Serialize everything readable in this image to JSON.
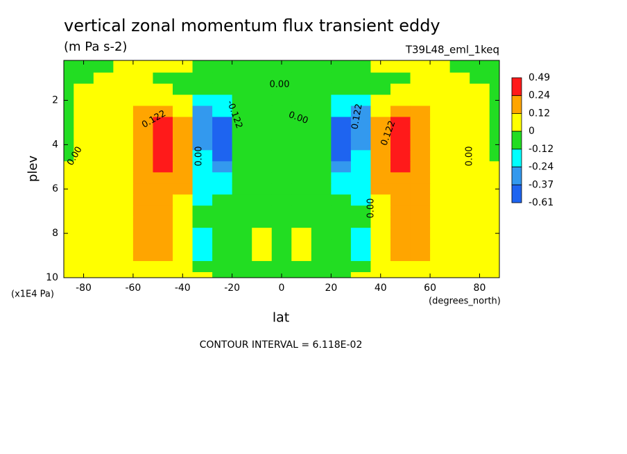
{
  "chart_data": {
    "type": "contour",
    "title": "vertical zonal momentum flux transient eddy",
    "subtitle": "(m Pa s-2)",
    "run_label": "T39L48_eml_1keq",
    "x_label": "lat",
    "x_units": "(degrees_north)",
    "y_label": "plev",
    "y_units": "(x1E4 Pa)",
    "footnote": "CONTOUR INTERVAL = 6.118E-02",
    "xlim": [
      -88,
      88
    ],
    "ylim": [
      10,
      0.2
    ],
    "xticks": [
      -80,
      -60,
      -40,
      -20,
      0,
      20,
      40,
      60,
      80
    ],
    "yticks": [
      2,
      4,
      6,
      8,
      10
    ],
    "levels": [
      0.49,
      0.24,
      0.12,
      0,
      -0.12,
      -0.24,
      -0.37,
      -0.61
    ],
    "colors": [
      "#ff1a1a",
      "#ffa500",
      "#ffff00",
      "#22dd22",
      "#00ffff",
      "#3399ee",
      "#1e64f0"
    ],
    "contour_labels": [
      "0.00",
      "0.00",
      "0.00",
      "0.122",
      "-0.122",
      "0.00",
      "0.122",
      "0.122",
      "0.00",
      "0.00"
    ],
    "x": [
      -88,
      -80,
      -72,
      -64,
      -56,
      -48,
      -40,
      -32,
      -24,
      -16,
      -8,
      0,
      8,
      16,
      24,
      32,
      40,
      48,
      56,
      64,
      72,
      80,
      88
    ],
    "y": [
      0.5,
      1.0,
      1.5,
      2.0,
      2.5,
      3.0,
      3.5,
      4.0,
      4.5,
      5.0,
      5.5,
      6.0,
      6.5,
      7.0,
      7.5,
      8.0,
      8.5,
      9.0,
      9.5,
      10.0
    ],
    "z": [
      [
        -0.06,
        -0.06,
        -0.06,
        0.06,
        0.06,
        0.06,
        0.06,
        -0.06,
        -0.06,
        -0.06,
        -0.06,
        -0.06,
        -0.06,
        -0.06,
        -0.06,
        -0.06,
        0.06,
        0.06,
        0.06,
        0.06,
        -0.06,
        -0.06,
        -0.06
      ],
      [
        -0.06,
        -0.06,
        0.06,
        0.06,
        0.06,
        -0.06,
        -0.06,
        -0.06,
        -0.06,
        -0.06,
        -0.06,
        -0.06,
        -0.06,
        -0.06,
        -0.06,
        -0.06,
        -0.06,
        -0.06,
        0.06,
        0.06,
        0.06,
        -0.06,
        -0.06
      ],
      [
        -0.06,
        0.06,
        0.06,
        0.06,
        0.06,
        0.06,
        -0.06,
        -0.06,
        -0.06,
        -0.06,
        -0.06,
        -0.06,
        -0.06,
        -0.06,
        -0.06,
        -0.06,
        -0.06,
        0.06,
        0.06,
        0.06,
        0.06,
        0.06,
        -0.06
      ],
      [
        -0.06,
        0.06,
        0.06,
        0.06,
        0.06,
        0.06,
        0.06,
        -0.18,
        -0.18,
        -0.06,
        -0.06,
        -0.06,
        -0.06,
        -0.06,
        -0.18,
        -0.18,
        0.06,
        0.06,
        0.06,
        0.06,
        0.06,
        0.06,
        -0.06
      ],
      [
        -0.06,
        0.06,
        0.06,
        0.06,
        0.18,
        0.18,
        0.06,
        -0.3,
        -0.18,
        -0.06,
        -0.06,
        -0.06,
        -0.06,
        -0.06,
        -0.18,
        -0.3,
        0.06,
        0.18,
        0.18,
        0.06,
        0.06,
        0.06,
        -0.06
      ],
      [
        -0.06,
        0.06,
        0.06,
        0.06,
        0.18,
        0.3,
        0.18,
        -0.3,
        -0.45,
        -0.06,
        -0.06,
        -0.06,
        -0.06,
        -0.06,
        -0.45,
        -0.3,
        0.18,
        0.3,
        0.18,
        0.06,
        0.06,
        0.06,
        -0.06
      ],
      [
        -0.06,
        0.06,
        0.06,
        0.06,
        0.18,
        0.3,
        0.18,
        -0.3,
        -0.45,
        -0.06,
        -0.06,
        -0.06,
        -0.06,
        -0.06,
        -0.45,
        -0.3,
        0.18,
        0.3,
        0.18,
        0.06,
        0.06,
        0.06,
        -0.06
      ],
      [
        -0.06,
        0.06,
        0.06,
        0.06,
        0.18,
        0.3,
        0.18,
        -0.3,
        -0.45,
        -0.06,
        -0.06,
        -0.06,
        -0.06,
        -0.06,
        -0.45,
        -0.3,
        0.18,
        0.3,
        0.18,
        0.06,
        0.06,
        0.06,
        -0.06
      ],
      [
        -0.06,
        0.06,
        0.06,
        0.06,
        0.18,
        0.3,
        0.18,
        -0.18,
        -0.45,
        -0.06,
        -0.06,
        -0.06,
        -0.06,
        -0.06,
        -0.45,
        -0.18,
        0.18,
        0.3,
        0.18,
        0.06,
        0.06,
        0.06,
        -0.06
      ],
      [
        0.06,
        0.06,
        0.06,
        0.06,
        0.18,
        0.3,
        0.18,
        -0.18,
        -0.3,
        -0.06,
        -0.06,
        -0.06,
        -0.06,
        -0.06,
        -0.3,
        -0.18,
        0.18,
        0.3,
        0.18,
        0.06,
        0.06,
        0.06,
        0.06
      ],
      [
        0.06,
        0.06,
        0.06,
        0.06,
        0.18,
        0.18,
        0.18,
        -0.18,
        -0.18,
        -0.06,
        -0.06,
        -0.06,
        -0.06,
        -0.06,
        -0.18,
        -0.18,
        0.18,
        0.18,
        0.18,
        0.06,
        0.06,
        0.06,
        0.06
      ],
      [
        0.06,
        0.06,
        0.06,
        0.06,
        0.18,
        0.18,
        0.18,
        -0.18,
        -0.18,
        -0.06,
        -0.06,
        -0.06,
        -0.06,
        -0.06,
        -0.18,
        -0.18,
        0.18,
        0.18,
        0.18,
        0.06,
        0.06,
        0.06,
        0.06
      ],
      [
        0.06,
        0.06,
        0.06,
        0.06,
        0.18,
        0.18,
        0.06,
        -0.18,
        -0.06,
        -0.06,
        -0.06,
        -0.06,
        -0.06,
        -0.06,
        -0.06,
        -0.18,
        0.06,
        0.18,
        0.18,
        0.06,
        0.06,
        0.06,
        0.06
      ],
      [
        0.06,
        0.06,
        0.06,
        0.06,
        0.18,
        0.18,
        0.06,
        -0.06,
        -0.06,
        -0.06,
        -0.06,
        -0.06,
        -0.06,
        -0.06,
        -0.06,
        -0.06,
        0.06,
        0.18,
        0.18,
        0.06,
        0.06,
        0.06,
        0.06
      ],
      [
        0.06,
        0.06,
        0.06,
        0.06,
        0.18,
        0.18,
        0.06,
        -0.06,
        -0.06,
        -0.06,
        -0.06,
        -0.06,
        -0.06,
        -0.06,
        -0.06,
        -0.06,
        0.06,
        0.18,
        0.18,
        0.06,
        0.06,
        0.06,
        0.06
      ],
      [
        0.06,
        0.06,
        0.06,
        0.06,
        0.18,
        0.18,
        0.06,
        -0.18,
        -0.06,
        -0.06,
        0.06,
        -0.06,
        0.06,
        -0.06,
        -0.06,
        -0.18,
        0.06,
        0.18,
        0.18,
        0.06,
        0.06,
        0.06,
        0.06
      ],
      [
        0.06,
        0.06,
        0.06,
        0.06,
        0.18,
        0.18,
        0.06,
        -0.18,
        -0.06,
        -0.06,
        0.06,
        -0.06,
        0.06,
        -0.06,
        -0.06,
        -0.18,
        0.06,
        0.18,
        0.18,
        0.06,
        0.06,
        0.06,
        0.06
      ],
      [
        0.06,
        0.06,
        0.06,
        0.06,
        0.18,
        0.18,
        0.06,
        -0.18,
        -0.06,
        -0.06,
        0.06,
        -0.06,
        0.06,
        -0.06,
        -0.06,
        -0.18,
        0.06,
        0.18,
        0.18,
        0.06,
        0.06,
        0.06,
        0.06
      ],
      [
        0.06,
        0.06,
        0.06,
        0.06,
        0.06,
        0.06,
        0.06,
        -0.06,
        -0.06,
        -0.06,
        -0.06,
        -0.06,
        -0.06,
        -0.06,
        -0.06,
        -0.06,
        0.06,
        0.06,
        0.06,
        0.06,
        0.06,
        0.06,
        0.06
      ],
      [
        0.06,
        0.06,
        0.06,
        0.06,
        0.06,
        0.06,
        0.06,
        0.06,
        -0.06,
        -0.06,
        -0.06,
        -0.06,
        -0.06,
        -0.06,
        -0.06,
        0.06,
        0.06,
        0.06,
        0.06,
        0.06,
        0.06,
        0.06,
        0.06
      ]
    ]
  }
}
